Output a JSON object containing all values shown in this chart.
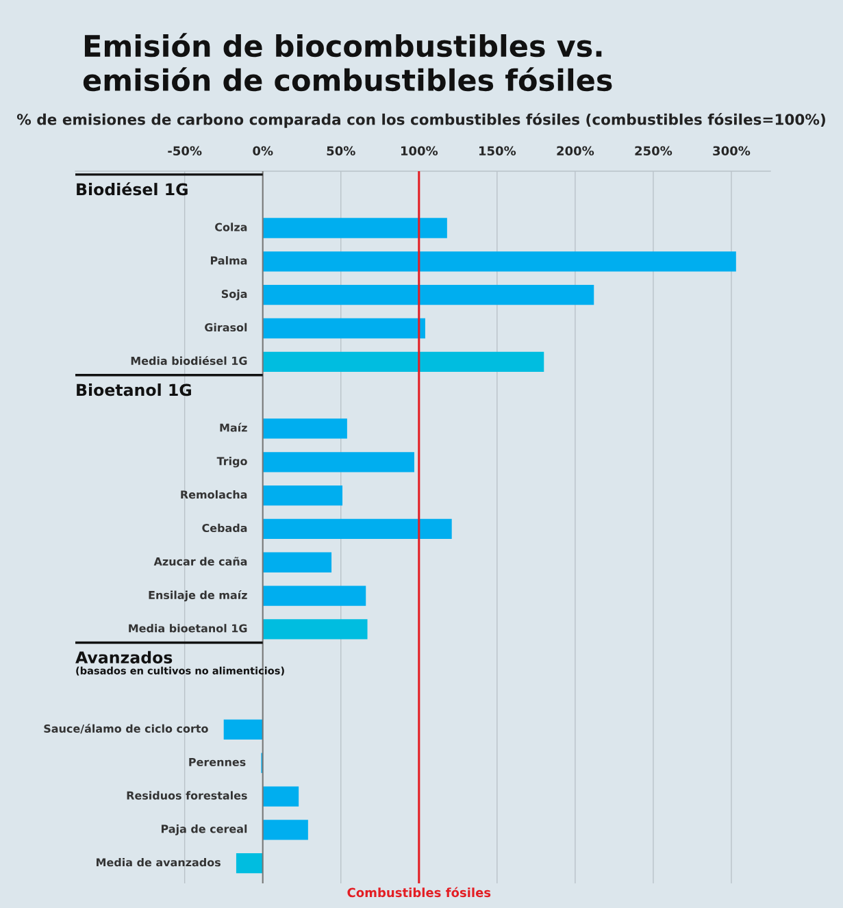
{
  "chart_data": {
    "type": "bar",
    "orientation": "horizontal",
    "title": "Emisión de biocombustibles vs.\nemisión de combustibles fósiles",
    "subtitle": "% de emisiones de carbono comparada con los combustibles fósiles (combustibles fósiles=100%)",
    "categories": [
      null,
      "Colza",
      "Palma",
      "Soja",
      "Girasol",
      "Media biodiésel 1G",
      null,
      "Maíz",
      "Trigo",
      "Remolacha",
      "Cebada",
      "Azucar de caña",
      "Ensilaje de maíz",
      "Media bioetanol 1G",
      null,
      null,
      "Sauce/álamo de ciclo corto",
      "Perennes",
      "Residuos forestales",
      "Paja de cereal",
      "Media de avanzados"
    ],
    "values": [
      null,
      118,
      303,
      212,
      104,
      180,
      null,
      54,
      97,
      51,
      121,
      44,
      66,
      67,
      null,
      null,
      -25,
      -1,
      23,
      29,
      -17
    ],
    "colors": [
      null,
      "#00aeef",
      "#00aeef",
      "#00aeef",
      "#00aeef",
      "#00bde0",
      null,
      "#00aeef",
      "#00aeef",
      "#00aeef",
      "#00aeef",
      "#00aeef",
      "#00aeef",
      "#00bde0",
      null,
      null,
      "#00aeef",
      "#00aeef",
      "#00aeef",
      "#00aeef",
      "#00bde0"
    ],
    "xlim": [
      -120,
      325
    ],
    "xticks": [
      {
        "value": -50,
        "label": "-50%"
      },
      {
        "value": 0,
        "label": "0%"
      },
      {
        "value": 50,
        "label": "50%"
      },
      {
        "value": 100,
        "label": "100%"
      },
      {
        "value": 150,
        "label": "150%"
      },
      {
        "value": 200,
        "label": "200%"
      },
      {
        "value": 250,
        "label": "250%"
      },
      {
        "value": 300,
        "label": "300%"
      }
    ],
    "grid": "x",
    "ref_lines": [
      {
        "axis": "x",
        "value": 100,
        "label": "Combustibles fósiles",
        "color": "#e31e24"
      }
    ],
    "annotations": [
      "Biodiésel 1G",
      "Bioetanol 1G",
      "Avanzados",
      "(basados en cultivos no alimenticios)"
    ]
  }
}
